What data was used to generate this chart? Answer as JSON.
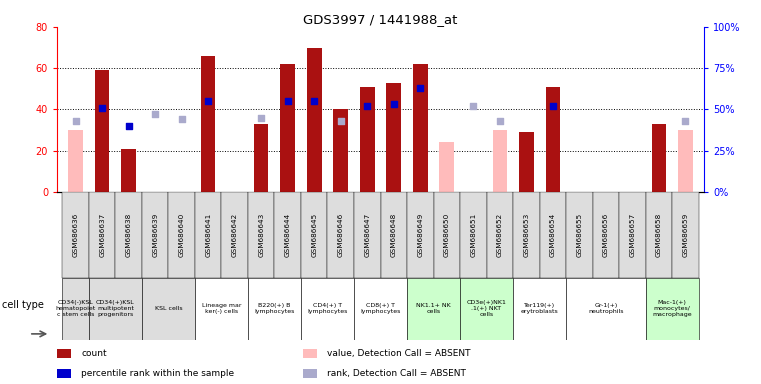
{
  "title": "GDS3997 / 1441988_at",
  "samples": [
    "GSM686636",
    "GSM686637",
    "GSM686638",
    "GSM686639",
    "GSM686640",
    "GSM686641",
    "GSM686642",
    "GSM686643",
    "GSM686644",
    "GSM686645",
    "GSM686646",
    "GSM686647",
    "GSM686648",
    "GSM686649",
    "GSM686650",
    "GSM686651",
    "GSM686652",
    "GSM686653",
    "GSM686654",
    "GSM686655",
    "GSM686656",
    "GSM686657",
    "GSM686658",
    "GSM686659"
  ],
  "count": [
    null,
    59,
    21,
    null,
    null,
    66,
    null,
    33,
    62,
    70,
    40,
    51,
    53,
    62,
    null,
    null,
    null,
    29,
    51,
    null,
    null,
    null,
    33,
    null
  ],
  "count_absent": [
    30,
    null,
    null,
    null,
    null,
    null,
    null,
    null,
    null,
    null,
    null,
    null,
    null,
    null,
    24,
    null,
    30,
    null,
    null,
    null,
    null,
    null,
    null,
    30
  ],
  "rank": [
    null,
    51,
    40,
    null,
    null,
    55,
    null,
    null,
    55,
    55,
    null,
    52,
    53,
    63,
    null,
    null,
    null,
    null,
    52,
    null,
    null,
    null,
    null,
    null
  ],
  "rank_absent": [
    43,
    null,
    null,
    47,
    44,
    null,
    null,
    45,
    null,
    null,
    43,
    null,
    null,
    null,
    null,
    52,
    43,
    null,
    null,
    null,
    null,
    null,
    null,
    43
  ],
  "cell_groups": [
    {
      "label": "CD34(-)KSL\nhematopoiet\nc stem cells",
      "start": 0,
      "end": 0,
      "color": "#dddddd"
    },
    {
      "label": "CD34(+)KSL\nmultipotent\nprogenitors",
      "start": 1,
      "end": 2,
      "color": "#dddddd"
    },
    {
      "label": "KSL cells",
      "start": 3,
      "end": 4,
      "color": "#dddddd"
    },
    {
      "label": "Lineage mar\nker(-) cells",
      "start": 5,
      "end": 6,
      "color": "#ffffff"
    },
    {
      "label": "B220(+) B\nlymphocytes",
      "start": 7,
      "end": 8,
      "color": "#ffffff"
    },
    {
      "label": "CD4(+) T\nlymphocytes",
      "start": 9,
      "end": 10,
      "color": "#ffffff"
    },
    {
      "label": "CD8(+) T\nlymphocytes",
      "start": 11,
      "end": 12,
      "color": "#ffffff"
    },
    {
      "label": "NK1.1+ NK\ncells",
      "start": 13,
      "end": 14,
      "color": "#ccffcc"
    },
    {
      "label": "CD3e(+)NK1\n.1(+) NKT\ncells",
      "start": 15,
      "end": 16,
      "color": "#ccffcc"
    },
    {
      "label": "Ter119(+)\nerytroblasts",
      "start": 17,
      "end": 18,
      "color": "#ffffff"
    },
    {
      "label": "Gr-1(+)\nneutrophils",
      "start": 19,
      "end": 21,
      "color": "#ffffff"
    },
    {
      "label": "Mac-1(+)\nmonocytes/\nmacrophage",
      "start": 22,
      "end": 23,
      "color": "#ccffcc"
    }
  ],
  "sample_bg_color": "#dddddd",
  "ylim": [
    0,
    80
  ],
  "y2lim": [
    0,
    100
  ],
  "yticks_left": [
    0,
    20,
    40,
    60,
    80
  ],
  "yticks_right": [
    0,
    25,
    50,
    75,
    100
  ],
  "bar_color": "#aa1111",
  "bar_absent_color": "#ffbbbb",
  "dot_color": "#0000cc",
  "dot_absent_color": "#aaaacc",
  "background": "#ffffff",
  "legend_items": [
    {
      "color": "#aa1111",
      "label": "count",
      "marker": "square"
    },
    {
      "color": "#0000cc",
      "label": "percentile rank within the sample",
      "marker": "square"
    },
    {
      "color": "#ffbbbb",
      "label": "value, Detection Call = ABSENT",
      "marker": "square"
    },
    {
      "color": "#aaaacc",
      "label": "rank, Detection Call = ABSENT",
      "marker": "square"
    }
  ]
}
